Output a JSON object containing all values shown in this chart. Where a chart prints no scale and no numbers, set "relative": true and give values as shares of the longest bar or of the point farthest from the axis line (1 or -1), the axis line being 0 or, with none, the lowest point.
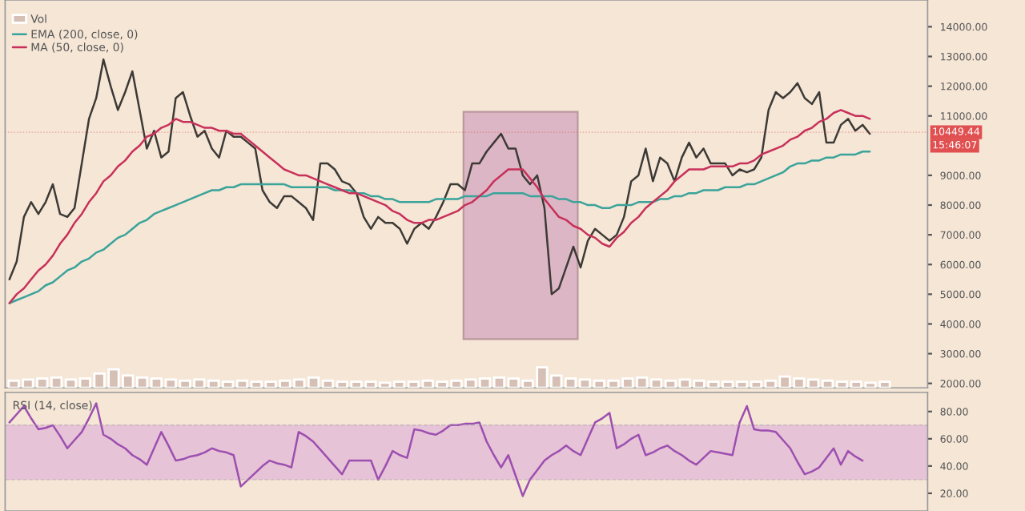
{
  "chart_data": [
    {
      "type": "line",
      "categories": [
        null,
        null,
        null,
        null,
        null,
        null,
        null,
        null,
        null,
        null,
        null,
        null,
        null,
        null,
        null,
        null,
        null,
        null,
        null,
        null,
        null,
        null,
        null,
        null,
        null,
        null,
        null,
        null,
        null,
        null,
        null,
        null,
        null,
        null,
        null,
        null,
        null,
        null,
        null,
        null,
        null,
        null,
        null,
        null,
        null,
        null,
        null,
        null,
        null,
        null,
        null,
        null,
        null,
        null,
        null,
        null,
        null,
        null,
        null,
        null,
        null,
        null,
        null,
        null,
        null,
        null,
        null,
        null,
        null,
        null,
        null,
        null,
        null,
        null,
        null,
        null,
        null,
        null,
        null,
        null,
        null,
        null,
        null,
        null,
        null,
        null,
        null,
        null,
        null,
        null,
        null,
        null,
        null,
        null,
        null,
        null,
        null,
        null,
        null,
        null,
        null,
        null,
        null,
        null,
        null,
        null,
        null,
        null,
        null,
        null,
        null,
        null,
        null,
        null,
        null,
        null,
        null,
        null,
        null,
        null
      ],
      "series": [
        {
          "color": "#3d3a36",
          "values": [
            5500,
            6100,
            7600,
            8100,
            7700,
            8100,
            8700,
            7700,
            7600,
            7900,
            9400,
            10900,
            11600,
            12900,
            12000,
            11200,
            11800,
            12500,
            11200,
            9900,
            10500,
            9600,
            9800,
            11600,
            11800,
            11000,
            10300,
            10500,
            9900,
            9600,
            10500,
            10300,
            10300,
            10100,
            9900,
            8500,
            8100,
            7900,
            8300,
            8300,
            8100,
            7900,
            7500,
            9400,
            9400,
            9200,
            8800,
            8700,
            8400,
            7600,
            7200,
            7600,
            7400,
            7400,
            7200,
            6700,
            7200,
            7400,
            7200,
            7600,
            8100,
            8700,
            8700,
            8500,
            9400,
            9400,
            9800,
            10100,
            10400,
            9900,
            9900,
            9000,
            8700,
            9000,
            7900,
            5000,
            5200,
            5900,
            6600,
            5900,
            6800,
            7200,
            7000,
            6800,
            7000,
            7600,
            8800,
            9000,
            9900,
            8800,
            9600,
            9400,
            8800,
            9600,
            10100,
            9600,
            9900,
            9400,
            9400,
            9400,
            9000,
            9200,
            9100,
            9200,
            9600,
            11200,
            11800,
            11600,
            11800,
            12100,
            11600,
            11400,
            11800,
            10100,
            10100,
            10700,
            10900,
            10500,
            10700,
            10400
          ]
        },
        {
          "name": "EMA (200, close, 0)",
          "color": "#3aa39a",
          "values": [
            4700,
            4800,
            4900,
            5000,
            5100,
            5300,
            5400,
            5600,
            5800,
            5900,
            6100,
            6200,
            6400,
            6500,
            6700,
            6900,
            7000,
            7200,
            7400,
            7500,
            7700,
            7800,
            7900,
            8000,
            8100,
            8200,
            8300,
            8400,
            8500,
            8500,
            8600,
            8600,
            8700,
            8700,
            8700,
            8700,
            8700,
            8700,
            8700,
            8600,
            8600,
            8600,
            8600,
            8600,
            8600,
            8500,
            8500,
            8500,
            8400,
            8400,
            8300,
            8300,
            8200,
            8200,
            8100,
            8100,
            8100,
            8100,
            8100,
            8200,
            8200,
            8200,
            8200,
            8300,
            8300,
            8300,
            8300,
            8400,
            8400,
            8400,
            8400,
            8400,
            8300,
            8300,
            8300,
            8300,
            8200,
            8200,
            8100,
            8100,
            8000,
            8000,
            7900,
            7900,
            8000,
            8000,
            8000,
            8100,
            8100,
            8100,
            8200,
            8200,
            8300,
            8300,
            8400,
            8400,
            8500,
            8500,
            8500,
            8600,
            8600,
            8600,
            8700,
            8700,
            8800,
            8900,
            9000,
            9100,
            9300,
            9400,
            9400,
            9500,
            9500,
            9600,
            9600,
            9700,
            9700,
            9700,
            9800,
            9800
          ]
        },
        {
          "name": "MA (50, close, 0)",
          "color": "#c8305a",
          "values": [
            4700,
            5000,
            5200,
            5500,
            5800,
            6000,
            6300,
            6700,
            7000,
            7400,
            7700,
            8100,
            8400,
            8800,
            9000,
            9300,
            9500,
            9800,
            10000,
            10300,
            10400,
            10600,
            10700,
            10900,
            10800,
            10800,
            10700,
            10600,
            10600,
            10500,
            10500,
            10400,
            10400,
            10200,
            10000,
            9800,
            9600,
            9400,
            9200,
            9100,
            9000,
            9000,
            8900,
            8800,
            8700,
            8600,
            8500,
            8400,
            8400,
            8300,
            8200,
            8100,
            8000,
            7800,
            7700,
            7500,
            7400,
            7400,
            7500,
            7500,
            7600,
            7700,
            7800,
            8000,
            8100,
            8300,
            8500,
            8800,
            9000,
            9200,
            9200,
            9200,
            8900,
            8600,
            8200,
            7900,
            7600,
            7500,
            7300,
            7200,
            7000,
            6900,
            6700,
            6600,
            6900,
            7100,
            7400,
            7600,
            7900,
            8100,
            8300,
            8500,
            8800,
            9000,
            9200,
            9200,
            9200,
            9300,
            9300,
            9300,
            9300,
            9400,
            9400,
            9500,
            9700,
            9800,
            9900,
            10000,
            10200,
            10300,
            10500,
            10600,
            10800,
            10900,
            11100,
            11200,
            11100,
            11000,
            11000,
            10900
          ]
        }
      ],
      "ylim": [
        1850,
        14900
      ],
      "yticks": [
        {
          "value": 2000,
          "label": "2000.00"
        },
        {
          "value": 3000,
          "label": "3000.00"
        },
        {
          "value": 4000,
          "label": "4000.00"
        },
        {
          "value": 5000,
          "label": "5000.00"
        },
        {
          "value": 6000,
          "label": "6000.00"
        },
        {
          "value": 7000,
          "label": "7000.00"
        },
        {
          "value": 8000,
          "label": "8000.00"
        },
        {
          "value": 9000,
          "label": "9000.00"
        },
        {
          "value": 11000,
          "label": "11000.00"
        },
        {
          "value": 12000,
          "label": "12000.00"
        },
        {
          "value": 13000,
          "label": "13000.00"
        },
        {
          "value": 14000,
          "label": "14000.00"
        }
      ],
      "ref_lines": [
        {
          "axis": "y",
          "value": 10449.44,
          "label": "10449.44",
          "color": "#e05050",
          "line_style": "dotted"
        }
      ],
      "annotations": [
        "15:46:07"
      ],
      "legend": "top left",
      "tick_labels": "y",
      "marker": "none",
      "line_style": "solid"
    },
    {
      "type": "bar",
      "relative": true,
      "categories": [
        null,
        null,
        null,
        null,
        null,
        null,
        null,
        null,
        null,
        null,
        null,
        null,
        null,
        null,
        null,
        null,
        null,
        null,
        null,
        null,
        null,
        null,
        null,
        null,
        null,
        null,
        null,
        null,
        null,
        null,
        null,
        null,
        null,
        null,
        null,
        null,
        null,
        null,
        null,
        null,
        null,
        null,
        null,
        null,
        null,
        null,
        null,
        null,
        null,
        null,
        null,
        null,
        null,
        null,
        null,
        null,
        null,
        null,
        null,
        null,
        null,
        null
      ],
      "series": [
        {
          "name": "Vol",
          "color": "#d6bfb4",
          "values": [
            0.35,
            0.4,
            0.45,
            0.5,
            0.4,
            0.45,
            0.7,
            0.9,
            0.6,
            0.5,
            0.45,
            0.4,
            0.35,
            0.4,
            0.35,
            0.3,
            0.35,
            0.3,
            0.3,
            0.35,
            0.4,
            0.5,
            0.35,
            0.3,
            0.3,
            0.3,
            0.25,
            0.3,
            0.3,
            0.35,
            0.3,
            0.35,
            0.4,
            0.45,
            0.5,
            0.45,
            0.35,
            1.0,
            0.6,
            0.45,
            0.4,
            0.35,
            0.35,
            0.45,
            0.5,
            0.4,
            0.35,
            0.4,
            0.35,
            0.3,
            0.3,
            0.3,
            0.3,
            0.35,
            0.55,
            0.45,
            0.4,
            0.35,
            0.3,
            0.3,
            0.25,
            0.3
          ]
        }
      ],
      "legend": "top left",
      "tick_labels": false
    },
    {
      "type": "line",
      "title": "RSI (14, close)",
      "categories": [
        null,
        null,
        null,
        null,
        null,
        null,
        null,
        null,
        null,
        null,
        null,
        null,
        null,
        null,
        null,
        null,
        null,
        null,
        null,
        null,
        null,
        null,
        null,
        null,
        null,
        null,
        null,
        null,
        null,
        null,
        null,
        null,
        null,
        null,
        null,
        null,
        null,
        null,
        null,
        null,
        null,
        null,
        null,
        null,
        null,
        null,
        null,
        null,
        null,
        null,
        null,
        null,
        null,
        null,
        null,
        null,
        null,
        null,
        null,
        null,
        null,
        null,
        null,
        null,
        null,
        null,
        null,
        null,
        null,
        null,
        null,
        null,
        null,
        null,
        null,
        null,
        null,
        null,
        null,
        null,
        null,
        null,
        null,
        null,
        null,
        null,
        null,
        null,
        null,
        null,
        null,
        null,
        null,
        null,
        null,
        null,
        null,
        null,
        null,
        null,
        null,
        null,
        null,
        null,
        null,
        null,
        null,
        null,
        null,
        null,
        null,
        null,
        null,
        null,
        null,
        null,
        null,
        null,
        null,
        null
      ],
      "series": [
        {
          "color": "#9c4fb0",
          "values": [
            72,
            78,
            84,
            75,
            67,
            68,
            70,
            62,
            53,
            59,
            65,
            75,
            86,
            63,
            60,
            56,
            53,
            48,
            45,
            41,
            53,
            65,
            55,
            44,
            45,
            47,
            48,
            50,
            53,
            51,
            50,
            48,
            25,
            30,
            35,
            40,
            44,
            42,
            41,
            39,
            65,
            62,
            58,
            52,
            46,
            40,
            34,
            44,
            44,
            44,
            44,
            30,
            40,
            51,
            48,
            46,
            67,
            66,
            64,
            63,
            66,
            70,
            70,
            71,
            71,
            72,
            58,
            48,
            39,
            48,
            33,
            18,
            30,
            37,
            44,
            48,
            51,
            55,
            51,
            48,
            60,
            72,
            75,
            79,
            53,
            56,
            60,
            63,
            48,
            50,
            53,
            55,
            51,
            48,
            44,
            41,
            46,
            51,
            50,
            49,
            48,
            72,
            84,
            67,
            66,
            66,
            65,
            59,
            53,
            43,
            34,
            36,
            39,
            46,
            53,
            41,
            51,
            47,
            44,
            null
          ]
        }
      ],
      "ylim": [
        7,
        94
      ],
      "yticks": [
        {
          "value": 20,
          "label": "20.00"
        },
        {
          "value": 40,
          "label": "40.00"
        },
        {
          "value": 60,
          "label": "60.00"
        },
        {
          "value": 80,
          "label": "80.00"
        }
      ],
      "bands": [
        {
          "axis": "y",
          "from": 30,
          "to": 70,
          "color": "#e6c3d6"
        }
      ],
      "ref_lines": [
        {
          "axis": "y",
          "value": 30,
          "color": "#a898a8",
          "line_style": "dashed"
        },
        {
          "axis": "y",
          "value": 70,
          "color": "#a898a8",
          "line_style": "dashed"
        }
      ],
      "tick_labels": "y",
      "marker": "none",
      "line_style": "solid"
    }
  ]
}
